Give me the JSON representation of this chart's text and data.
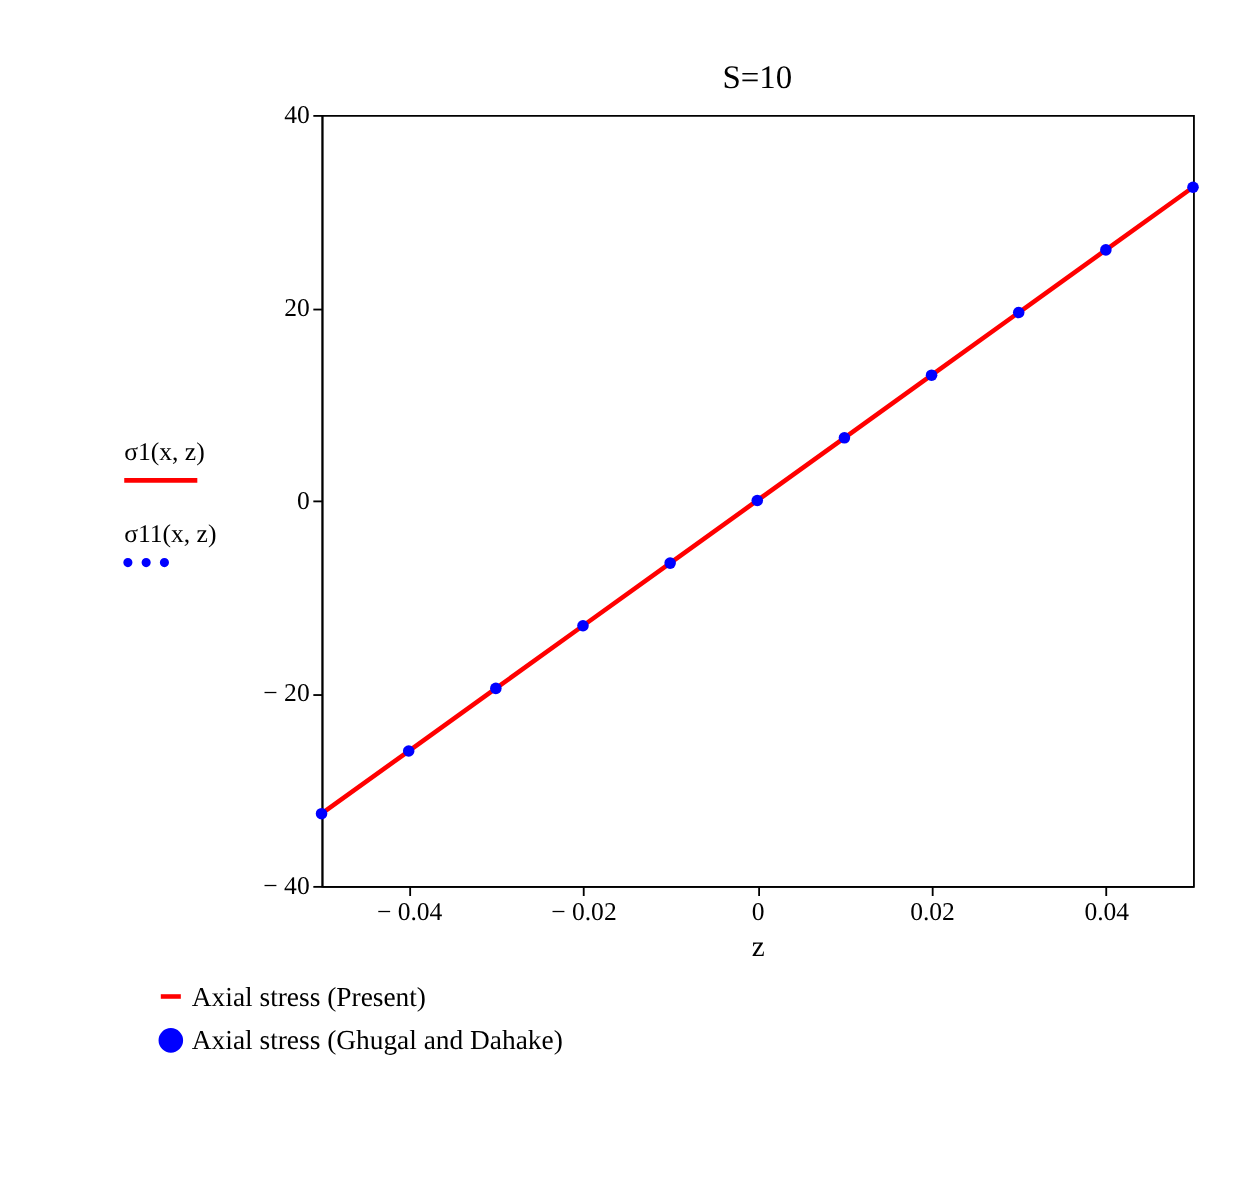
{
  "chart_data": {
    "type": "line",
    "title": "S=10",
    "xlabel": "z",
    "x": [
      -0.05,
      -0.04,
      -0.03,
      -0.02,
      -0.01,
      0,
      0.01,
      0.02,
      0.03,
      0.04,
      0.05
    ],
    "series": [
      {
        "name": "Axial stress (Present)",
        "type": "line",
        "color": "#ff0000",
        "marker": "none",
        "line_style": "solid",
        "values": [
          -32.5,
          -26,
          -19.5,
          -13,
          -6.5,
          0,
          6.5,
          13,
          19.5,
          26,
          32.5
        ]
      },
      {
        "name": "Axial stress (Ghugal and Dahake)",
        "type": "scatter",
        "color": "#0000ff",
        "marker": "circle",
        "values": [
          -32.5,
          -26,
          -19.5,
          -13,
          -6.5,
          0,
          6.5,
          13,
          19.5,
          26,
          32.5
        ]
      }
    ],
    "annotations": [
      "σ1(x, z)",
      "σ11(x, z)"
    ],
    "xlim": [
      -0.05,
      0.05
    ],
    "xticks": [
      {
        "value": -0.04,
        "label": "− 0.04"
      },
      {
        "value": -0.02,
        "label": "− 0.02"
      },
      0,
      0.02,
      0.04
    ],
    "ylim": [
      -40,
      40
    ],
    "yticks": [
      {
        "value": -40,
        "label": "− 40"
      },
      {
        "value": -20,
        "label": "− 20"
      },
      0,
      20,
      40
    ],
    "grid": false,
    "legend": "bottom"
  }
}
